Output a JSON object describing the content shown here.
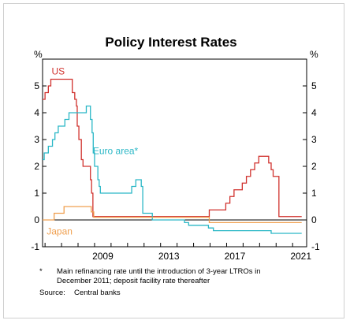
{
  "chart_data": {
    "type": "line",
    "title": "Policy Interest Rates",
    "y_unit_left": "%",
    "y_unit_right": "%",
    "ylim": [
      -1,
      6
    ],
    "y_ticks": [
      -1,
      0,
      1,
      2,
      3,
      4,
      5
    ],
    "x_range": [
      2005.85,
      2021.85
    ],
    "x_ticks": [
      2009,
      2013,
      2017,
      2021
    ],
    "grid": false,
    "series": [
      {
        "name": "US",
        "color": "#d0312d",
        "points": [
          [
            2005.85,
            4.5
          ],
          [
            2006.0,
            4.5
          ],
          [
            2006.0,
            4.75
          ],
          [
            2006.2,
            4.75
          ],
          [
            2006.2,
            5.0
          ],
          [
            2006.35,
            5.0
          ],
          [
            2006.35,
            5.25
          ],
          [
            2007.65,
            5.25
          ],
          [
            2007.65,
            4.75
          ],
          [
            2007.8,
            4.75
          ],
          [
            2007.8,
            4.5
          ],
          [
            2007.9,
            4.5
          ],
          [
            2007.9,
            4.25
          ],
          [
            2007.95,
            4.25
          ],
          [
            2007.95,
            3.5
          ],
          [
            2008.05,
            3.5
          ],
          [
            2008.05,
            3.0
          ],
          [
            2008.2,
            3.0
          ],
          [
            2008.2,
            2.25
          ],
          [
            2008.3,
            2.25
          ],
          [
            2008.3,
            2.0
          ],
          [
            2008.75,
            2.0
          ],
          [
            2008.75,
            1.5
          ],
          [
            2008.82,
            1.5
          ],
          [
            2008.82,
            1.0
          ],
          [
            2008.9,
            1.0
          ],
          [
            2008.9,
            0.125
          ],
          [
            2015.95,
            0.125
          ],
          [
            2015.95,
            0.375
          ],
          [
            2016.95,
            0.375
          ],
          [
            2016.95,
            0.625
          ],
          [
            2017.2,
            0.625
          ],
          [
            2017.2,
            0.875
          ],
          [
            2017.45,
            0.875
          ],
          [
            2017.45,
            1.125
          ],
          [
            2017.95,
            1.125
          ],
          [
            2017.95,
            1.375
          ],
          [
            2018.2,
            1.375
          ],
          [
            2018.2,
            1.625
          ],
          [
            2018.45,
            1.625
          ],
          [
            2018.45,
            1.875
          ],
          [
            2018.7,
            1.875
          ],
          [
            2018.7,
            2.125
          ],
          [
            2018.95,
            2.125
          ],
          [
            2018.95,
            2.375
          ],
          [
            2019.55,
            2.375
          ],
          [
            2019.55,
            2.125
          ],
          [
            2019.7,
            2.125
          ],
          [
            2019.7,
            1.875
          ],
          [
            2019.82,
            1.875
          ],
          [
            2019.82,
            1.625
          ],
          [
            2020.17,
            1.625
          ],
          [
            2020.17,
            0.125
          ],
          [
            2021.55,
            0.125
          ]
        ]
      },
      {
        "name": "Euro area*",
        "color": "#2ab7c6",
        "points": [
          [
            2005.85,
            2.25
          ],
          [
            2005.95,
            2.25
          ],
          [
            2005.95,
            2.5
          ],
          [
            2006.2,
            2.5
          ],
          [
            2006.2,
            2.75
          ],
          [
            2006.45,
            2.75
          ],
          [
            2006.45,
            3.0
          ],
          [
            2006.6,
            3.0
          ],
          [
            2006.6,
            3.25
          ],
          [
            2006.8,
            3.25
          ],
          [
            2006.8,
            3.5
          ],
          [
            2007.2,
            3.5
          ],
          [
            2007.2,
            3.75
          ],
          [
            2007.45,
            3.75
          ],
          [
            2007.45,
            4.0
          ],
          [
            2008.5,
            4.0
          ],
          [
            2008.5,
            4.25
          ],
          [
            2008.75,
            4.25
          ],
          [
            2008.75,
            3.75
          ],
          [
            2008.85,
            3.75
          ],
          [
            2008.85,
            3.25
          ],
          [
            2008.92,
            3.25
          ],
          [
            2008.92,
            2.5
          ],
          [
            2009.0,
            2.5
          ],
          [
            2009.0,
            2.0
          ],
          [
            2009.2,
            2.0
          ],
          [
            2009.2,
            1.5
          ],
          [
            2009.28,
            1.5
          ],
          [
            2009.28,
            1.25
          ],
          [
            2009.35,
            1.25
          ],
          [
            2009.35,
            1.0
          ],
          [
            2011.25,
            1.0
          ],
          [
            2011.25,
            1.25
          ],
          [
            2011.5,
            1.25
          ],
          [
            2011.5,
            1.5
          ],
          [
            2011.83,
            1.5
          ],
          [
            2011.83,
            1.25
          ],
          [
            2011.92,
            1.25
          ],
          [
            2011.92,
            0.25
          ],
          [
            2012.5,
            0.25
          ],
          [
            2012.5,
            0.0
          ],
          [
            2014.45,
            0.0
          ],
          [
            2014.45,
            -0.1
          ],
          [
            2014.7,
            -0.1
          ],
          [
            2014.7,
            -0.2
          ],
          [
            2015.9,
            -0.2
          ],
          [
            2015.9,
            -0.3
          ],
          [
            2016.2,
            -0.3
          ],
          [
            2016.2,
            -0.4
          ],
          [
            2019.7,
            -0.4
          ],
          [
            2019.7,
            -0.5
          ],
          [
            2021.55,
            -0.5
          ]
        ]
      },
      {
        "name": "Japan",
        "color": "#f0a050",
        "points": [
          [
            2005.85,
            0.0
          ],
          [
            2006.55,
            0.0
          ],
          [
            2006.55,
            0.25
          ],
          [
            2007.15,
            0.25
          ],
          [
            2007.15,
            0.5
          ],
          [
            2008.8,
            0.5
          ],
          [
            2008.8,
            0.3
          ],
          [
            2008.95,
            0.3
          ],
          [
            2008.95,
            0.1
          ],
          [
            2015.95,
            0.1
          ],
          [
            2015.95,
            -0.1
          ],
          [
            2021.55,
            -0.1
          ]
        ]
      }
    ],
    "footnote_marker": "*",
    "footnote_text": "Main refinancing rate until the introduction of 3-year LTROs in December 2011; deposit facility rate thereafter",
    "footnote_line1": "Main refinancing rate until the introduction of 3-year LTROs in",
    "footnote_line2": "December 2011; deposit facility rate thereafter",
    "source_label": "Source:",
    "source_text": "Central banks"
  }
}
